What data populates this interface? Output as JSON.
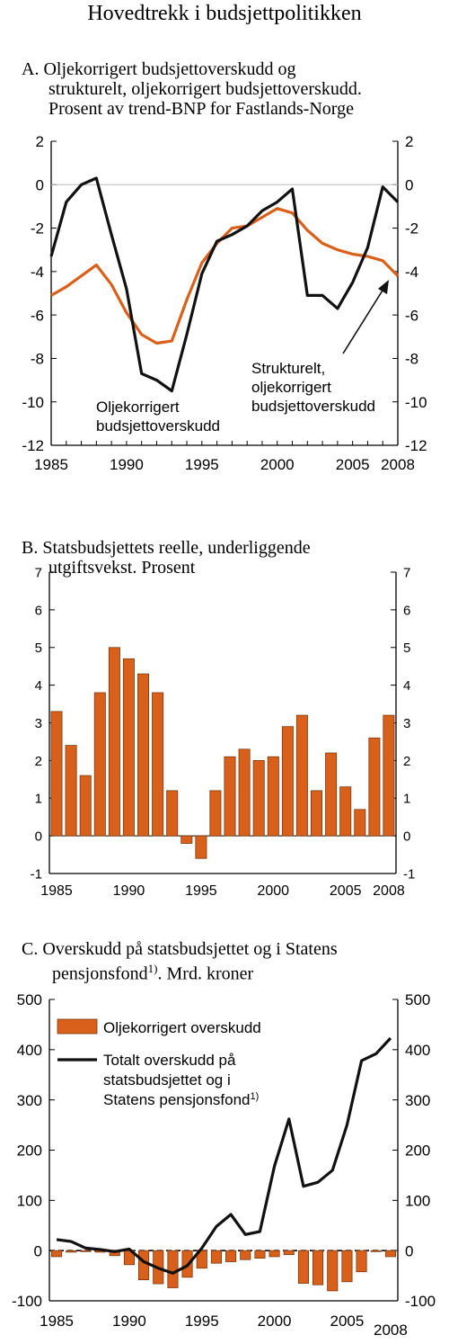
{
  "page": {
    "title": "Hovedtrekk i budsjettpolitikken"
  },
  "colors": {
    "orange": "#D9601A",
    "black": "#111111",
    "axis": "#000000",
    "zero": "#bdbdbd"
  },
  "chart_data": [
    {
      "id": "A",
      "type": "line",
      "title_lines": [
        "A. Oljekorrigert budsjettoverskudd og",
        "strukturelt, oljekorrigert budsjettoverskudd.",
        "Prosent av trend-BNP for Fastlands-Norge"
      ],
      "x_ticks": [
        "1985",
        "1990",
        "1995",
        "2000",
        "2005",
        "2008"
      ],
      "x_tick_values": [
        1985,
        1990,
        1995,
        2000,
        2005,
        2008
      ],
      "xlim": [
        1985,
        2008
      ],
      "ylim": [
        -12,
        2
      ],
      "y_ticks": [
        "2",
        "0",
        "-2",
        "-4",
        "-6",
        "-8",
        "-10",
        "-12"
      ],
      "y_tick_values": [
        2,
        0,
        -2,
        -4,
        -6,
        -8,
        -10,
        -12
      ],
      "series": [
        {
          "name": "Oljekorrigert budsjettoverskudd",
          "color": "black",
          "x": [
            1985,
            1986,
            1987,
            1988,
            1989,
            1990,
            1991,
            1992,
            1993,
            1994,
            1995,
            1996,
            1997,
            1998,
            1999,
            2000,
            2001,
            2002,
            2003,
            2004,
            2005,
            2006,
            2007,
            2008
          ],
          "y": [
            -3.3,
            -0.8,
            0.0,
            0.3,
            -2.3,
            -4.8,
            -8.7,
            -9.0,
            -9.5,
            -6.9,
            -4.1,
            -2.6,
            -2.3,
            -1.9,
            -1.2,
            -0.8,
            -0.2,
            -5.1,
            -5.1,
            -5.7,
            -4.5,
            -2.9,
            -0.1,
            -0.8
          ],
          "label_lines": [
            "Oljekorrigert",
            "budsjettoverskudd"
          ]
        },
        {
          "name": "Strukturelt, oljekorrigert budsjettoverskudd",
          "color": "orange",
          "x": [
            1985,
            1986,
            1987,
            1988,
            1989,
            1990,
            1991,
            1992,
            1993,
            1994,
            1995,
            1996,
            1997,
            1998,
            1999,
            2000,
            2001,
            2002,
            2003,
            2004,
            2005,
            2006,
            2007,
            2008
          ],
          "y": [
            -5.1,
            -4.7,
            -4.2,
            -3.7,
            -4.6,
            -5.9,
            -6.9,
            -7.3,
            -7.2,
            -5.3,
            -3.6,
            -2.7,
            -2.0,
            -1.9,
            -1.5,
            -1.1,
            -1.3,
            -2.1,
            -2.7,
            -3.0,
            -3.2,
            -3.3,
            -3.5,
            -4.2
          ],
          "label_lines": [
            "Strukturelt,",
            "oljekorrigert",
            "budsjettoverskudd"
          ]
        }
      ]
    },
    {
      "id": "B",
      "type": "bar",
      "title_lines": [
        "B. Statsbudsjettets reelle, underliggende",
        "utgiftsvekst. Prosent"
      ],
      "categories": [
        1985,
        1986,
        1987,
        1988,
        1989,
        1990,
        1991,
        1992,
        1993,
        1994,
        1995,
        1996,
        1997,
        1998,
        1999,
        2000,
        2001,
        2002,
        2003,
        2004,
        2005,
        2006,
        2007,
        2008
      ],
      "values": [
        3.3,
        2.4,
        1.6,
        3.8,
        5.0,
        4.7,
        4.3,
        3.8,
        1.2,
        -0.2,
        -0.6,
        1.2,
        2.1,
        2.3,
        2.0,
        2.1,
        2.9,
        3.2,
        1.2,
        2.2,
        1.3,
        0.7,
        2.6,
        3.2
      ],
      "x_ticks": [
        "1985",
        "1990",
        "1995",
        "2000",
        "2005",
        "2008"
      ],
      "x_tick_values": [
        1985,
        1990,
        1995,
        2000,
        2005,
        2008
      ],
      "ylim": [
        -1,
        7
      ],
      "y_ticks": [
        "7",
        "6",
        "5",
        "4",
        "3",
        "2",
        "1",
        "0",
        "-1"
      ],
      "y_tick_values": [
        7,
        6,
        5,
        4,
        3,
        2,
        1,
        0,
        -1
      ]
    },
    {
      "id": "C",
      "type": "bar",
      "title_lines": [
        "C.  Overskudd på statsbudsjettet og i Statens",
        "pensjonsfond",
        ". Mrd. kroner"
      ],
      "title_sup": "1)",
      "categories": [
        1985,
        1986,
        1987,
        1988,
        1989,
        1990,
        1991,
        1992,
        1993,
        1994,
        1995,
        1996,
        1997,
        1998,
        1999,
        2000,
        2001,
        2002,
        2003,
        2004,
        2005,
        2006,
        2007,
        2008
      ],
      "bars": {
        "name": "Oljekorrigert overskudd",
        "values": [
          -12,
          -3,
          -2,
          -3,
          -10,
          -28,
          -58,
          -66,
          -74,
          -53,
          -35,
          -25,
          -22,
          -18,
          -15,
          -12,
          -8,
          -65,
          -68,
          -80,
          -62,
          -42,
          -2,
          -12
        ]
      },
      "line": {
        "name_lines": [
          "Totalt overskudd på",
          "statsbudsjettet og i",
          "Statens pensjonsfond"
        ],
        "name_sup": "1)",
        "values": [
          22,
          18,
          5,
          2,
          -2,
          3,
          -22,
          -35,
          -45,
          -30,
          5,
          48,
          72,
          32,
          38,
          168,
          262,
          128,
          136,
          160,
          250,
          378,
          392,
          423
        ]
      },
      "x_ticks": [
        "1985",
        "1990",
        "1995",
        "2000",
        "2005",
        "2008"
      ],
      "x_tick_values": [
        1985,
        1990,
        1995,
        2000,
        2005,
        2008
      ],
      "ylim": [
        -100,
        500
      ],
      "y_ticks": [
        "500",
        "400",
        "300",
        "200",
        "100",
        "0",
        "-100"
      ],
      "y_tick_values": [
        500,
        400,
        300,
        200,
        100,
        0,
        -100
      ]
    }
  ]
}
